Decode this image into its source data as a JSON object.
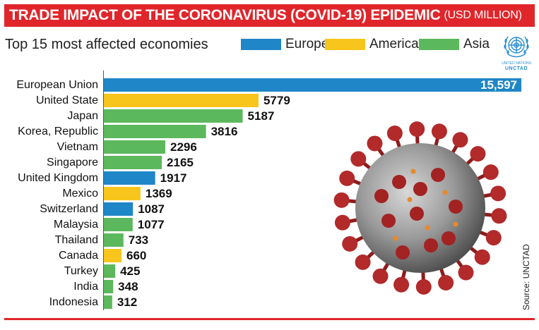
{
  "header": {
    "title": "TRADE IMPACT OF THE CORONAVIRUS (COVID-19) EPIDEMIC",
    "unit": "(USD MILLION)"
  },
  "subtitle": "Top 15 most affected economies",
  "legend": [
    {
      "label": "Europe",
      "color": "#1f86c8"
    },
    {
      "label": "America",
      "color": "#f8c51c"
    },
    {
      "label": "Asia",
      "color": "#5cb85c"
    }
  ],
  "logo": {
    "icon": "un-emblem-icon",
    "line1": "UNITED NATIONS",
    "line2": "UNCTAD"
  },
  "source": "Source: UNCTAD",
  "colors": {
    "title_bar": "#e0262b",
    "Europe": "#1f86c8",
    "America": "#f8c51c",
    "Asia": "#5cb85c"
  },
  "chart_data": {
    "type": "bar",
    "orientation": "horizontal",
    "categories": [
      "European Union",
      "United State",
      "Japan",
      "Korea, Republic",
      "Vietnam",
      "Singapore",
      "United Kingdom",
      "Mexico",
      "Switzerland",
      "Malaysia",
      "Thailand",
      "Canada",
      "Turkey",
      "India",
      "Indonesia"
    ],
    "values": [
      15597,
      5779,
      5187,
      3816,
      2296,
      2165,
      1917,
      1369,
      1087,
      1077,
      733,
      660,
      425,
      348,
      312
    ],
    "value_labels": [
      "15,597",
      "5779",
      "5187",
      "3816",
      "2296",
      "2165",
      "1917",
      "1369",
      "1087",
      "1077",
      "733",
      "660",
      "425",
      "348",
      "312"
    ],
    "regions": [
      "Europe",
      "America",
      "Asia",
      "Asia",
      "Asia",
      "Asia",
      "Europe",
      "America",
      "Europe",
      "Asia",
      "Asia",
      "America",
      "Asia",
      "Asia",
      "Asia"
    ],
    "legend_placement": "top",
    "grid": false
  }
}
